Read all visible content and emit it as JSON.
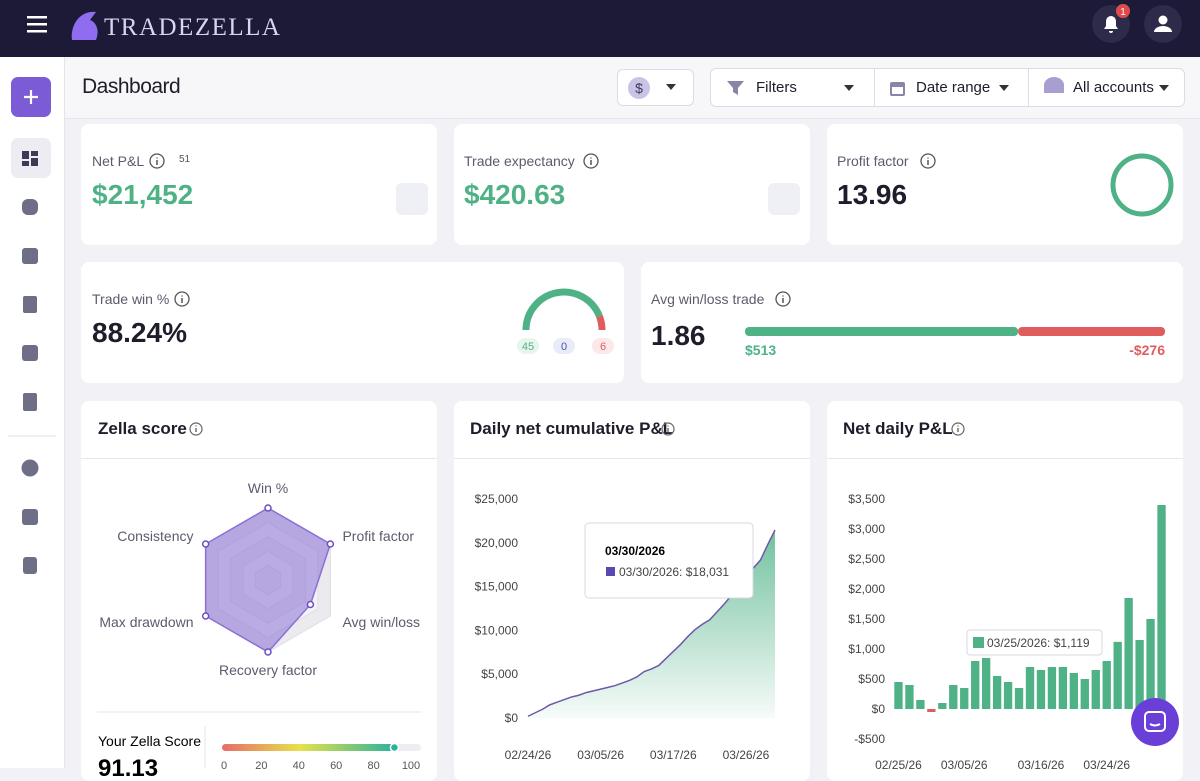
{
  "header": {
    "logo": "TRADEZELLA",
    "notifications": 1
  },
  "toolbar": {
    "title": "Dashboard",
    "currency": "$",
    "filters": "Filters",
    "date_range": "Date range",
    "accounts": "All accounts"
  },
  "cards": {
    "net_pnl": {
      "label": "Net P&L",
      "trades": 51,
      "value": "$21,452"
    },
    "trade_expectancy": {
      "label": "Trade expectancy",
      "value": "$420.63"
    },
    "profit_factor": {
      "label": "Profit factor",
      "value": "13.96"
    },
    "trade_win": {
      "label": "Trade win %",
      "value": "88.24%",
      "wins": 45,
      "breakeven": 0,
      "losses": 6
    },
    "avg_win_loss": {
      "label": "Avg win/loss trade",
      "value": "1.86",
      "avg_win": {
        "value": 513,
        "label": "$513"
      },
      "avg_loss": {
        "value": -276,
        "label": "-$276"
      }
    }
  },
  "chart_data": [
    {
      "type": "radar",
      "title": "Zella score",
      "categories": [
        "Win %",
        "Profit factor",
        "Avg win/loss",
        "Recovery factor",
        "Max drawdown",
        "Consistency"
      ],
      "values": [
        100,
        100,
        68,
        100,
        100,
        100
      ],
      "rlim": [
        0,
        100
      ],
      "color": "#8b6fd6",
      "score_label": "Your Zella Score",
      "score": 91.13,
      "score_ticks": [
        0,
        20,
        40,
        60,
        80,
        100
      ]
    },
    {
      "type": "area",
      "title": "Daily net cumulative P&L",
      "categories": [
        "02/24/26",
        null,
        null,
        null,
        null,
        null,
        null,
        null,
        null,
        null,
        "03/05/26",
        null,
        null,
        null,
        null,
        null,
        null,
        null,
        null,
        null,
        "03/17/26",
        null,
        null,
        null,
        null,
        null,
        null,
        null,
        null,
        null,
        "03/26/26",
        null,
        null,
        null,
        null
      ],
      "values": [
        200,
        600,
        1000,
        1500,
        1800,
        2100,
        2400,
        2600,
        2900,
        3100,
        3300,
        3500,
        3700,
        4000,
        4300,
        4700,
        5300,
        5600,
        6000,
        6800,
        7600,
        8400,
        9300,
        10100,
        10700,
        11200,
        12100,
        13000,
        14000,
        15000,
        16000,
        17100,
        18031,
        19800,
        21452
      ],
      "color": "#4fb286",
      "ylim": [
        0,
        25000
      ],
      "yticks": [
        {
          "value": 0,
          "label": "$0"
        },
        {
          "value": 5000,
          "label": "$5,000"
        },
        {
          "value": 10000,
          "label": "$10,000"
        },
        {
          "value": 15000,
          "label": "$15,000"
        },
        {
          "value": 20000,
          "label": "$20,000"
        },
        {
          "value": 25000,
          "label": "$25,000"
        }
      ],
      "tooltip": {
        "title": "03/30/2026",
        "text": "03/30/2026: $18,031"
      }
    },
    {
      "type": "bar",
      "title": "Net daily P&L",
      "categories": [
        "02/25/26",
        null,
        null,
        null,
        null,
        null,
        "03/05/26",
        null,
        null,
        null,
        null,
        null,
        null,
        "03/16/26",
        null,
        null,
        null,
        null,
        null,
        "03/24/26",
        null,
        null,
        null,
        null,
        null
      ],
      "values": [
        450,
        400,
        150,
        -50,
        100,
        400,
        350,
        800,
        850,
        550,
        450,
        350,
        700,
        650,
        700,
        700,
        600,
        500,
        650,
        800,
        1119,
        1850,
        1150,
        1500,
        3400
      ],
      "color": "#4fb286",
      "negative_color": "#e05d5d",
      "ylim": [
        -500,
        3500
      ],
      "yticks": [
        {
          "value": -500,
          "label": "-$500"
        },
        {
          "value": 0,
          "label": "$0"
        },
        {
          "value": 500,
          "label": "$500"
        },
        {
          "value": 1000,
          "label": "$1,000"
        },
        {
          "value": 1500,
          "label": "$1,500"
        },
        {
          "value": 2000,
          "label": "$2,000"
        },
        {
          "value": 2500,
          "label": "$2,500"
        },
        {
          "value": 3000,
          "label": "$3,000"
        },
        {
          "value": 3500,
          "label": "$3,500"
        }
      ],
      "tooltip": {
        "text": "03/25/2026: $1,119"
      }
    }
  ]
}
